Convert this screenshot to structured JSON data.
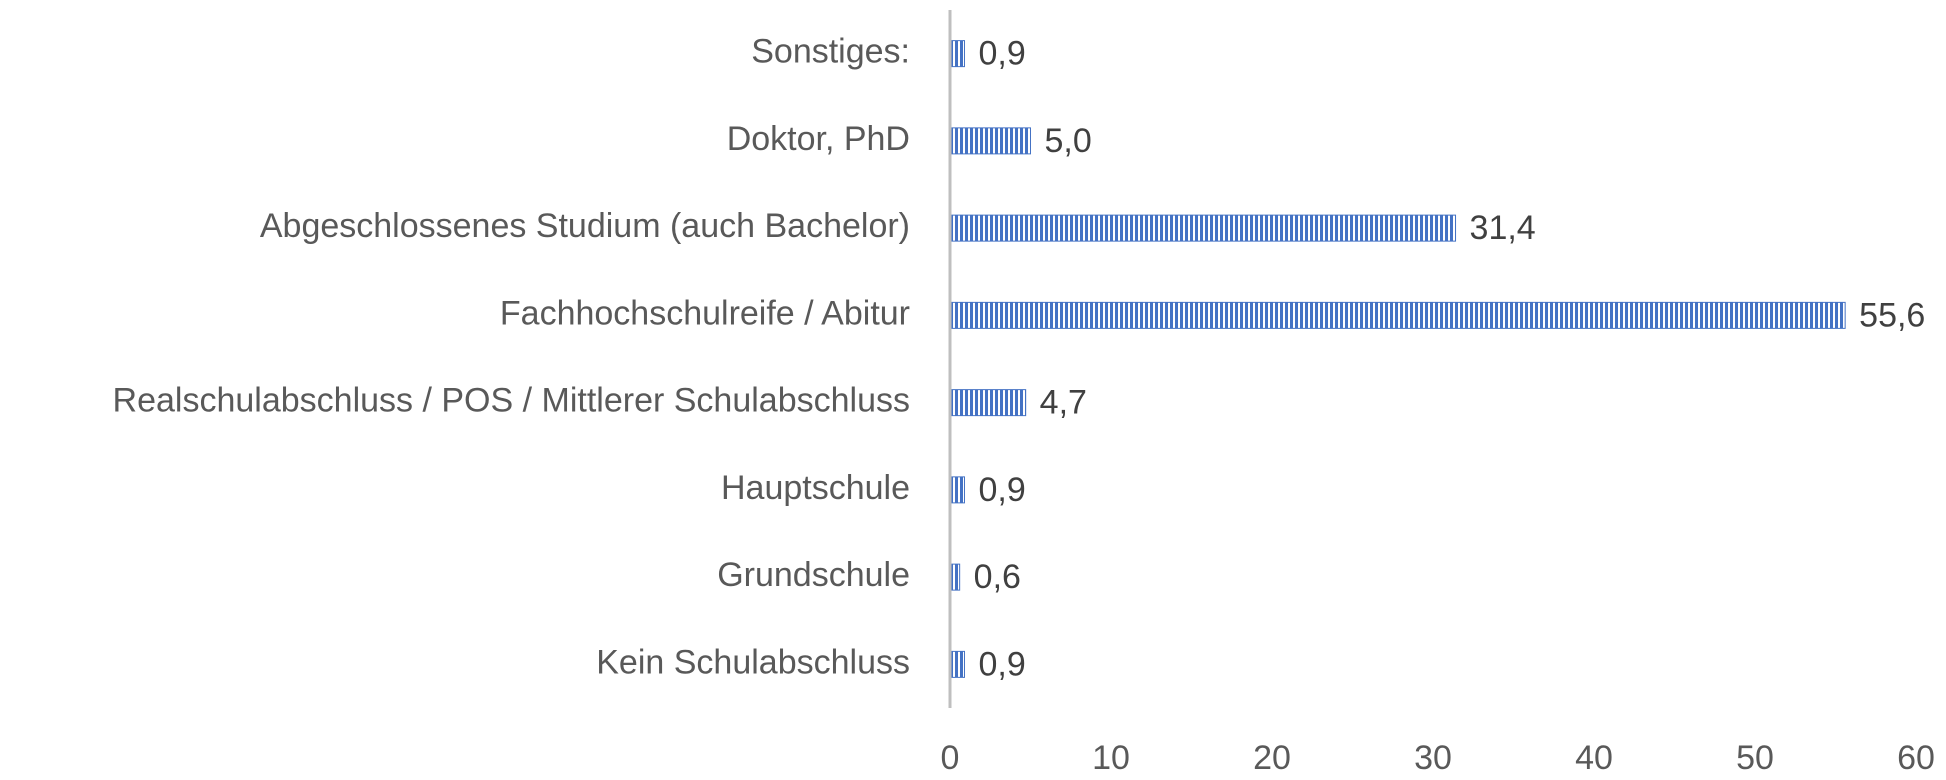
{
  "chart_data": {
    "type": "bar",
    "orientation": "horizontal",
    "categories": [
      "Kein Schulabschluss",
      "Grundschule",
      "Hauptschule",
      "Realschulabschluss / POS / Mittlerer Schulabschluss",
      "Fachhochschulreife / Abitur",
      "Abgeschlossenes Studium (auch Bachelor)",
      "Doktor, PhD",
      "Sonstiges:"
    ],
    "values": [
      0.9,
      0.6,
      0.9,
      4.7,
      55.6,
      31.4,
      5.0,
      0.9
    ],
    "value_labels": [
      "0,9",
      "0,6",
      "0,9",
      "4,7",
      "55,6",
      "31,4",
      "5,0",
      "0,9"
    ],
    "color": "#4472c4",
    "xlim": [
      0,
      60
    ],
    "xticks": [
      0,
      10,
      20,
      30,
      40,
      50,
      60
    ],
    "grid": false
  }
}
